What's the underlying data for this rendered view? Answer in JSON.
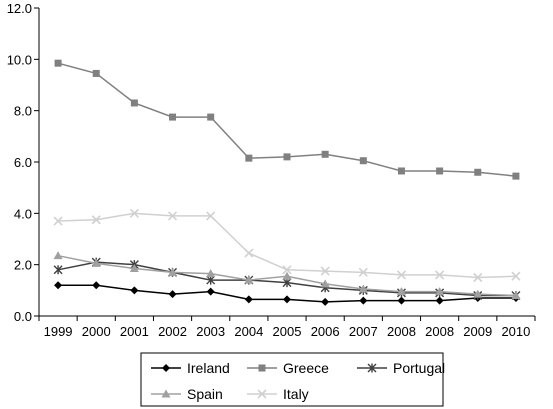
{
  "chart_data": {
    "type": "line",
    "title": "",
    "xlabel": "",
    "ylabel": "",
    "x": [
      "1999",
      "2000",
      "2001",
      "2002",
      "2003",
      "2004",
      "2005",
      "2006",
      "2007",
      "2008",
      "2008",
      "2009",
      "2010"
    ],
    "ylim": [
      0,
      12
    ],
    "yticks": [
      "0.0",
      "2.0",
      "4.0",
      "6.0",
      "8.0",
      "10.0",
      "12.0"
    ],
    "grid": false,
    "legend": "bottom",
    "series": [
      {
        "name": "Ireland",
        "marker": "diamond",
        "color": "#000000",
        "values": [
          1.2,
          1.2,
          1.0,
          0.85,
          0.95,
          0.65,
          0.65,
          0.55,
          0.6,
          0.6,
          0.6,
          0.7,
          0.7
        ]
      },
      {
        "name": "Greece",
        "marker": "square",
        "color": "#808080",
        "values": [
          9.85,
          9.45,
          8.3,
          7.75,
          7.75,
          6.15,
          6.2,
          6.3,
          6.05,
          5.65,
          5.65,
          5.6,
          5.45
        ]
      },
      {
        "name": "Portugal",
        "marker": "asterisk",
        "color": "#404040",
        "values": [
          1.8,
          2.1,
          2.0,
          1.7,
          1.4,
          1.4,
          1.3,
          1.1,
          1.0,
          0.9,
          0.9,
          0.8,
          0.8
        ]
      },
      {
        "name": "Spain",
        "marker": "triangle",
        "color": "#a0a0a0",
        "values": [
          2.35,
          2.05,
          1.85,
          1.7,
          1.65,
          1.4,
          1.55,
          1.25,
          1.05,
          0.95,
          0.95,
          0.85,
          0.8
        ]
      },
      {
        "name": "Italy",
        "marker": "x",
        "color": "#d0d0d0",
        "values": [
          3.7,
          3.75,
          4.0,
          3.9,
          3.9,
          2.45,
          1.8,
          1.75,
          1.7,
          1.6,
          1.6,
          1.5,
          1.55
        ]
      }
    ]
  }
}
